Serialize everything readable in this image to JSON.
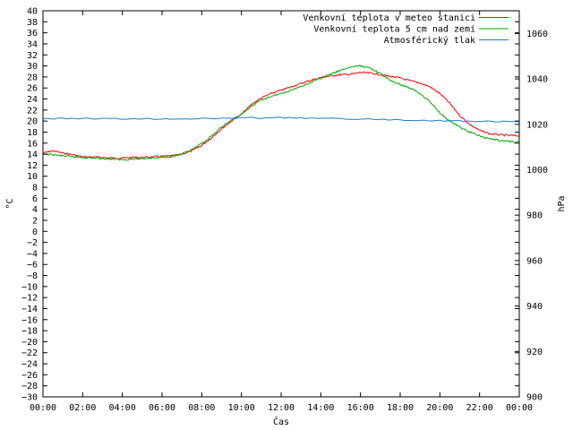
{
  "chart_data": {
    "type": "line",
    "xlabel": "Čas",
    "ylabel_left": "°C",
    "ylabel_right": "hPa",
    "x_ticks": [
      "00:00",
      "02:00",
      "04:00",
      "06:00",
      "08:00",
      "10:00",
      "12:00",
      "14:00",
      "16:00",
      "18:00",
      "20:00",
      "22:00",
      "00:00"
    ],
    "x_range_hours": [
      0,
      24
    ],
    "ylim_left": [
      -30,
      40
    ],
    "ylim_right": [
      900,
      1070
    ],
    "y_ticks_left": [
      "40",
      "38",
      "36",
      "34",
      "32",
      "30",
      "28",
      "26",
      "24",
      "22",
      "20",
      "18",
      "16",
      "14",
      "12",
      "10",
      "8",
      "6",
      "4",
      "2",
      "0",
      "-2",
      "-4",
      "-6",
      "-8",
      "-10",
      "-12",
      "-14",
      "-16",
      "-18",
      "-20",
      "-22",
      "-24",
      "-26",
      "-28",
      "-30"
    ],
    "y_ticks_right": [
      "1060",
      "1040",
      "1020",
      "1000",
      "980",
      "960",
      "940",
      "920",
      "900"
    ],
    "legend_position": "top-right",
    "grid": false,
    "series": [
      {
        "name": "Venkovní teplota v meteo stanici",
        "color": "#ff0000",
        "axis": "left",
        "x": [
          0,
          0.5,
          1,
          1.5,
          2,
          2.5,
          3,
          3.5,
          4,
          4.5,
          5,
          5.5,
          6,
          6.5,
          7,
          7.5,
          8,
          8.5,
          9,
          9.5,
          10,
          10.5,
          11,
          11.5,
          12,
          12.5,
          13,
          13.5,
          14,
          14.5,
          15,
          15.5,
          16,
          16.5,
          17,
          17.5,
          18,
          18.5,
          19,
          19.5,
          20,
          20.5,
          21,
          21.5,
          22,
          22.5,
          23,
          23.5,
          24
        ],
        "values": [
          14.2,
          14.6,
          14.2,
          13.9,
          13.5,
          13.5,
          13.4,
          13.3,
          13.3,
          13.4,
          13.4,
          13.5,
          13.6,
          13.7,
          14.0,
          14.6,
          15.6,
          17.0,
          18.6,
          20.0,
          21.2,
          23.0,
          24.2,
          25.0,
          25.6,
          26.2,
          26.8,
          27.4,
          27.9,
          28.2,
          28.4,
          28.5,
          28.8,
          28.7,
          28.4,
          28.1,
          27.8,
          27.3,
          26.9,
          26.2,
          25.0,
          23.2,
          21.0,
          19.4,
          18.3,
          17.7,
          17.5,
          17.4,
          17.3
        ]
      },
      {
        "name": "Venkovní teplota 5 cm nad zemí",
        "color": "#00aa00",
        "axis": "left",
        "x": [
          0,
          0.5,
          1,
          1.5,
          2,
          2.5,
          3,
          3.5,
          4,
          4.5,
          5,
          5.5,
          6,
          6.5,
          7,
          7.5,
          8,
          8.5,
          9,
          9.5,
          10,
          10.5,
          11,
          11.5,
          12,
          12.5,
          13,
          13.5,
          14,
          14.5,
          15,
          15.5,
          16,
          16.5,
          17,
          17.5,
          18,
          18.5,
          19,
          19.5,
          20,
          20.5,
          21,
          21.5,
          22,
          22.5,
          23,
          23.5,
          24
        ],
        "values": [
          14.0,
          13.9,
          13.7,
          13.5,
          13.4,
          13.3,
          13.2,
          13.1,
          13.0,
          13.1,
          13.2,
          13.3,
          13.4,
          13.6,
          14.0,
          14.8,
          15.9,
          17.3,
          18.9,
          20.2,
          21.2,
          22.7,
          23.8,
          24.5,
          25.0,
          25.6,
          26.3,
          27.0,
          27.8,
          28.5,
          29.2,
          29.8,
          30.0,
          29.6,
          28.6,
          27.4,
          26.6,
          26.0,
          25.0,
          23.5,
          21.5,
          20.0,
          18.9,
          18.0,
          17.3,
          16.8,
          16.5,
          16.3,
          16.2
        ]
      },
      {
        "name": "Atmosférický tlak",
        "color": "#1a80c8",
        "axis": "right",
        "x": [
          0,
          2,
          4,
          6,
          8,
          10,
          12,
          14,
          16,
          18,
          20,
          22,
          24
        ],
        "values": [
          1022.5,
          1022.6,
          1022.4,
          1022.4,
          1022.5,
          1022.8,
          1022.9,
          1022.6,
          1022.3,
          1022.0,
          1021.6,
          1021.3,
          1021.1
        ]
      }
    ]
  }
}
